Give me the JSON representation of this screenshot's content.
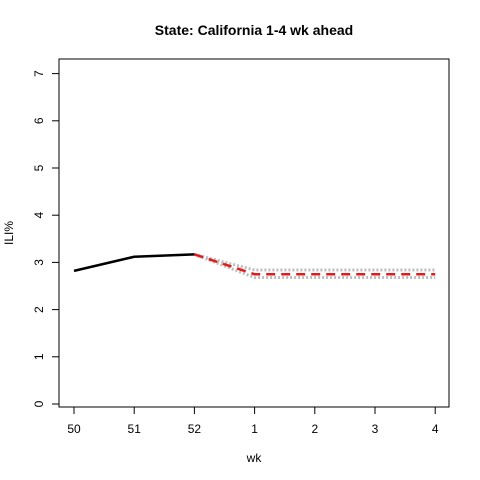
{
  "chart_data": {
    "type": "line",
    "title": "State: California 1-4 wk ahead",
    "xlabel": "wk",
    "ylabel": "ILI%",
    "x_tick_labels": [
      "50",
      "51",
      "52",
      "1",
      "2",
      "3",
      "4"
    ],
    "y_ticks": [
      0,
      1,
      2,
      3,
      4,
      5,
      6,
      7
    ],
    "ylim": [
      0,
      7
    ],
    "grid": false,
    "series": [
      {
        "style": "solid",
        "color": "#000000",
        "values": [
          2.82,
          3.12,
          3.17,
          null,
          null,
          null,
          null
        ]
      },
      {
        "style": "dashed",
        "color": "#e31a1c",
        "values": [
          null,
          null,
          3.17,
          2.75,
          2.75,
          2.75,
          2.75
        ]
      },
      {
        "style": "dotted-band",
        "color": "#bdbdbd",
        "upper": [
          null,
          null,
          3.17,
          2.84,
          2.84,
          2.84,
          2.84
        ],
        "lower": [
          null,
          null,
          3.17,
          2.68,
          2.68,
          2.68,
          2.68
        ]
      }
    ]
  }
}
